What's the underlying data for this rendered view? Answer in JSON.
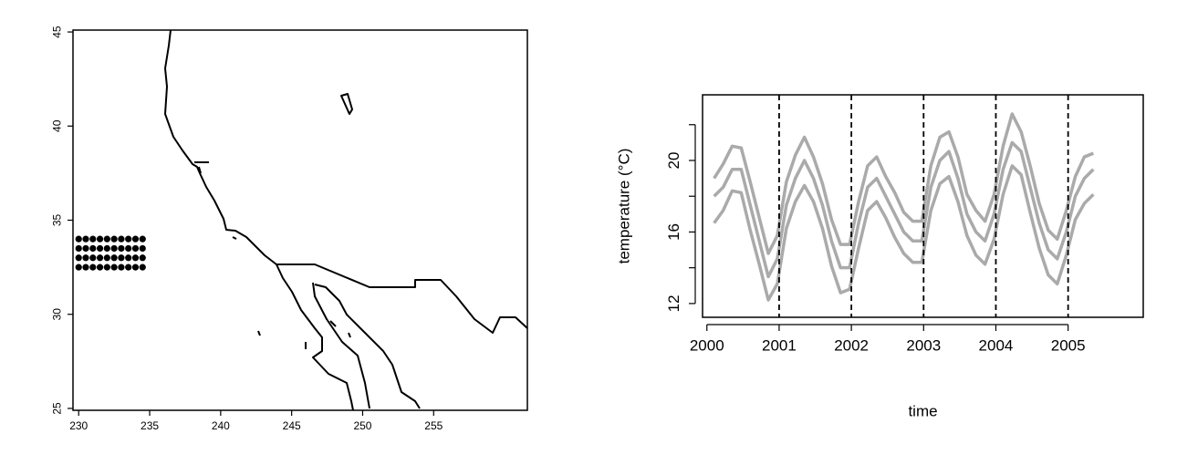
{
  "chart_data": [
    {
      "type": "scatter",
      "x": [
        230,
        230.5,
        231,
        231.5,
        232,
        232.5,
        233,
        233.5,
        234,
        234.5,
        230,
        230.5,
        231,
        231.5,
        232,
        232.5,
        233,
        233.5,
        234,
        234.5,
        230,
        230.5,
        231,
        231.5,
        232,
        232.5,
        233,
        233.5,
        234,
        234.5,
        230,
        230.5,
        231,
        231.5,
        232,
        232.5,
        233,
        233.5,
        234,
        234.5
      ],
      "y": [
        32.5,
        32.5,
        32.5,
        32.5,
        32.5,
        32.5,
        32.5,
        32.5,
        32.5,
        32.5,
        33,
        33,
        33,
        33,
        33,
        33,
        33,
        33,
        33,
        33,
        33.5,
        33.5,
        33.5,
        33.5,
        33.5,
        33.5,
        33.5,
        33.5,
        33.5,
        33.5,
        34,
        34,
        34,
        34,
        34,
        34,
        34,
        34,
        34,
        34
      ],
      "color": "#000000",
      "xlim": [
        229.6,
        261.6
      ],
      "ylim": [
        24.9,
        45.1
      ],
      "xticks": [
        230,
        235,
        240,
        245,
        250,
        255
      ],
      "yticks": [
        25,
        30,
        35,
        40,
        45
      ]
    },
    {
      "type": "line",
      "xlabel": "time",
      "ylabel": "temperature (°C)",
      "x": [
        2000.1,
        2000.225,
        2000.35,
        2000.475,
        2000.6,
        2000.725,
        2000.85,
        2000.975,
        2001.1,
        2001.225,
        2001.35,
        2001.475,
        2001.6,
        2001.725,
        2001.85,
        2001.975,
        2002.1,
        2002.225,
        2002.35,
        2002.475,
        2002.6,
        2002.725,
        2002.85,
        2002.975,
        2003.1,
        2003.225,
        2003.35,
        2003.475,
        2003.6,
        2003.725,
        2003.85,
        2003.975,
        2004.1,
        2004.225,
        2004.35,
        2004.475,
        2004.6,
        2004.725,
        2004.85,
        2004.975,
        2005.1,
        2005.225,
        2005.35
      ],
      "series": [
        {
          "color": "#aaaaaa",
          "values": [
            19,
            19.8,
            20.8,
            20.7,
            18.8,
            16.8,
            14.8,
            15.8,
            18.8,
            20.3,
            21.3,
            20.2,
            18.7,
            16.7,
            15.3,
            15.3,
            17.7,
            19.7,
            20.2,
            19.1,
            18.2,
            17.1,
            16.6,
            16.6,
            19.7,
            21.3,
            21.6,
            20.2,
            18.1,
            17.2,
            16.6,
            18.1,
            20.8,
            22.6,
            21.6,
            19.7,
            17.6,
            16.1,
            15.6,
            17.2,
            19.1,
            20.2,
            20.4
          ]
        },
        {
          "color": "#aaaaaa",
          "values": [
            18,
            18.5,
            19.5,
            19.5,
            17.5,
            15.5,
            13.5,
            14.5,
            17.5,
            19,
            20,
            19,
            17.5,
            15.5,
            14,
            14,
            16.5,
            18.5,
            19,
            18,
            17,
            16,
            15.5,
            15.5,
            18.5,
            20,
            20.5,
            19,
            17,
            16,
            15.5,
            17,
            19.5,
            21,
            20.5,
            18.5,
            16.5,
            15,
            14.5,
            16,
            18,
            19,
            19.5
          ]
        },
        {
          "color": "#aaaaaa",
          "values": [
            16.5,
            17.2,
            18.3,
            18.2,
            16.1,
            14.2,
            12.2,
            13.1,
            16.2,
            17.7,
            18.6,
            17.7,
            16.2,
            14.1,
            12.6,
            12.8,
            15.1,
            17.2,
            17.7,
            16.8,
            15.7,
            14.8,
            14.3,
            14.3,
            17.2,
            18.7,
            19.1,
            17.7,
            15.8,
            14.7,
            14.2,
            15.6,
            18.1,
            19.7,
            19.2,
            17.1,
            15.1,
            13.6,
            13.1,
            14.7,
            16.7,
            17.6,
            18.1
          ]
        }
      ],
      "xlim": [
        1999.94,
        2006.04
      ],
      "ylim": [
        11.23,
        23.67
      ],
      "xticks": [
        2000,
        2001,
        2002,
        2003,
        2004,
        2005
      ],
      "yticks": [
        12,
        16,
        20
      ],
      "yminorticks": [
        14,
        18,
        22
      ],
      "vlines": [
        2001,
        2002,
        2003,
        2004,
        2005
      ]
    }
  ]
}
